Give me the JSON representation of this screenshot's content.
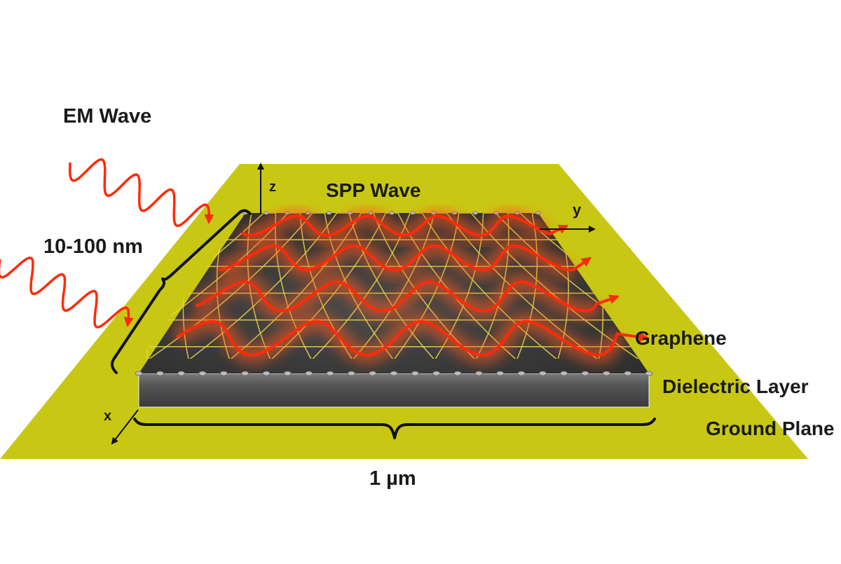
{
  "labels": {
    "em_wave": "EM Wave",
    "thickness": "10-100 nm",
    "spp_wave": "SPP Wave",
    "axis_z": "z",
    "axis_y": "y",
    "axis_x": "x",
    "graphene": "Graphene",
    "dielectric": "Dielectric Layer",
    "ground_plane": "Ground Plane",
    "width": "1 µm"
  },
  "colors": {
    "ground_plane": "#c8c814",
    "graphene_sheet": "#3c3c3c",
    "lattice_bonds": "#e8d84a",
    "wave_red": "#ff2a0a",
    "glow": "#ff5a1e",
    "dielectric": "#555555"
  }
}
